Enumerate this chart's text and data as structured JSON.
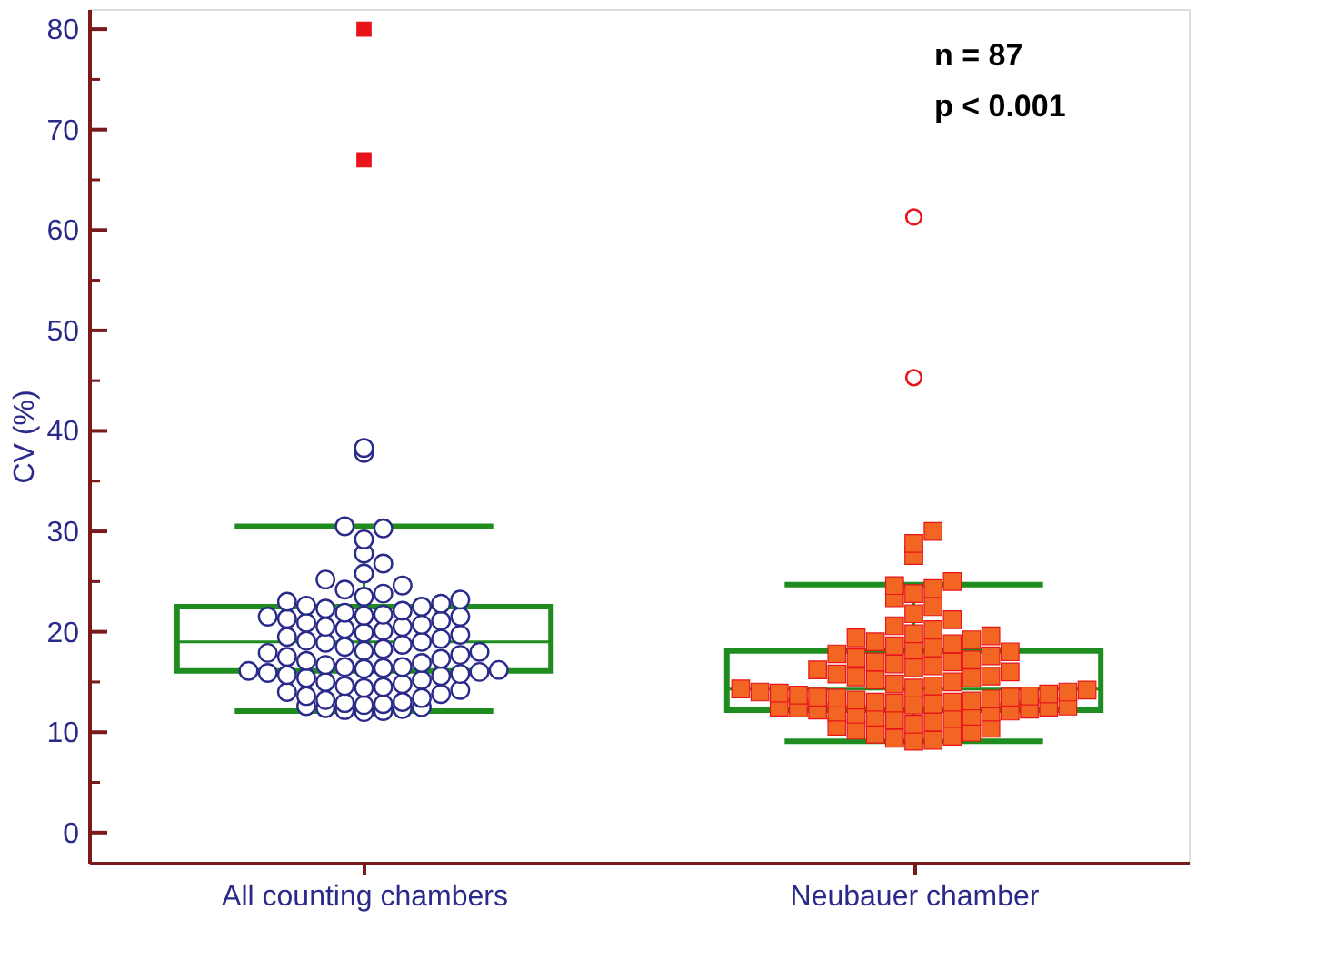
{
  "chart_data": {
    "type": "box",
    "ylabel": "CV (%)",
    "categories": [
      "All counting chambers",
      "Neubauer chamber"
    ],
    "color": "#1e8c1e",
    "boxes": [
      {
        "low": 12.1,
        "q1": 16.1,
        "median": 19.0,
        "q3": 22.5,
        "high": 30.5,
        "outliers": [
          80,
          67
        ]
      },
      {
        "low": 9.1,
        "q1": 12.2,
        "median": 14.3,
        "q3": 18.1,
        "high": 24.7,
        "outliers": [
          61.3,
          45.3
        ]
      }
    ],
    "series": [
      {
        "type": "scatter",
        "marker": "circle",
        "color": "#ffffff",
        "x": [
          "All counting chambers",
          "All counting chambers",
          "All counting chambers",
          "All counting chambers",
          "All counting chambers",
          "All counting chambers",
          "All counting chambers",
          "All counting chambers",
          "All counting chambers",
          "All counting chambers",
          "All counting chambers",
          "All counting chambers",
          "All counting chambers",
          "All counting chambers",
          "All counting chambers",
          "All counting chambers",
          "All counting chambers",
          "All counting chambers",
          "All counting chambers",
          "All counting chambers",
          "All counting chambers",
          "All counting chambers",
          "All counting chambers",
          "All counting chambers",
          "All counting chambers",
          "All counting chambers",
          "All counting chambers",
          "All counting chambers",
          "All counting chambers",
          "All counting chambers",
          "All counting chambers",
          "All counting chambers",
          "All counting chambers",
          "All counting chambers",
          "All counting chambers",
          "All counting chambers",
          "All counting chambers",
          "All counting chambers",
          "All counting chambers",
          "All counting chambers",
          "All counting chambers",
          "All counting chambers",
          "All counting chambers",
          "All counting chambers",
          "All counting chambers",
          "All counting chambers",
          "All counting chambers",
          "All counting chambers",
          "All counting chambers",
          "All counting chambers",
          "All counting chambers",
          "All counting chambers",
          "All counting chambers",
          "All counting chambers",
          "All counting chambers",
          "All counting chambers",
          "All counting chambers",
          "All counting chambers",
          "All counting chambers",
          "All counting chambers",
          "All counting chambers",
          "All counting chambers",
          "All counting chambers",
          "All counting chambers",
          "All counting chambers",
          "All counting chambers",
          "All counting chambers",
          "All counting chambers",
          "All counting chambers",
          "All counting chambers",
          "All counting chambers",
          "All counting chambers",
          "All counting chambers",
          "All counting chambers",
          "All counting chambers",
          "All counting chambers",
          "All counting chambers",
          "All counting chambers",
          "All counting chambers",
          "All counting chambers",
          "All counting chambers",
          "All counting chambers",
          "All counting chambers",
          "All counting chambers",
          "All counting chambers",
          "All counting chambers",
          "All counting chambers"
        ],
        "values": [
          38.3,
          37.8,
          30.5,
          30.3,
          29.2,
          27.8,
          26.8,
          25.8,
          25.2,
          24.6,
          24.2,
          23.8,
          23.5,
          23.2,
          23.0,
          22.8,
          22.6,
          22.5,
          22.3,
          22.1,
          21.9,
          21.7,
          21.6,
          21.5,
          21.3,
          21.1,
          20.9,
          20.7,
          20.5,
          20.3,
          20.1,
          19.9,
          19.7,
          19.5,
          19.3,
          19.1,
          19.0,
          18.9,
          18.7,
          18.5,
          18.3,
          18.1,
          17.9,
          17.7,
          17.5,
          17.3,
          17.1,
          16.9,
          16.7,
          16.5,
          16.4,
          16.3,
          16.2,
          16.1,
          16.0,
          15.9,
          15.8,
          15.7,
          15.6,
          15.4,
          15.2,
          15.0,
          14.8,
          14.6,
          14.4,
          14.2,
          14.0,
          13.8,
          13.6,
          13.4,
          13.2,
          13.0,
          12.9,
          12.8,
          12.7,
          12.6,
          12.5,
          12.4,
          12.3,
          12.2,
          12.1,
          12.0,
          21.5,
          18.0,
          14.5,
          16.5,
          20.5
        ]
      },
      {
        "type": "scatter",
        "marker": "square",
        "color": "#f26522",
        "x": [
          "Neubauer chamber",
          "Neubauer chamber",
          "Neubauer chamber",
          "Neubauer chamber",
          "Neubauer chamber",
          "Neubauer chamber",
          "Neubauer chamber",
          "Neubauer chamber",
          "Neubauer chamber",
          "Neubauer chamber",
          "Neubauer chamber",
          "Neubauer chamber",
          "Neubauer chamber",
          "Neubauer chamber",
          "Neubauer chamber",
          "Neubauer chamber",
          "Neubauer chamber",
          "Neubauer chamber",
          "Neubauer chamber",
          "Neubauer chamber",
          "Neubauer chamber",
          "Neubauer chamber",
          "Neubauer chamber",
          "Neubauer chamber",
          "Neubauer chamber",
          "Neubauer chamber",
          "Neubauer chamber",
          "Neubauer chamber",
          "Neubauer chamber",
          "Neubauer chamber",
          "Neubauer chamber",
          "Neubauer chamber",
          "Neubauer chamber",
          "Neubauer chamber",
          "Neubauer chamber",
          "Neubauer chamber",
          "Neubauer chamber",
          "Neubauer chamber",
          "Neubauer chamber",
          "Neubauer chamber",
          "Neubauer chamber",
          "Neubauer chamber",
          "Neubauer chamber",
          "Neubauer chamber",
          "Neubauer chamber",
          "Neubauer chamber",
          "Neubauer chamber",
          "Neubauer chamber",
          "Neubauer chamber",
          "Neubauer chamber",
          "Neubauer chamber",
          "Neubauer chamber",
          "Neubauer chamber",
          "Neubauer chamber",
          "Neubauer chamber",
          "Neubauer chamber",
          "Neubauer chamber",
          "Neubauer chamber",
          "Neubauer chamber",
          "Neubauer chamber",
          "Neubauer chamber",
          "Neubauer chamber",
          "Neubauer chamber",
          "Neubauer chamber",
          "Neubauer chamber",
          "Neubauer chamber",
          "Neubauer chamber",
          "Neubauer chamber",
          "Neubauer chamber",
          "Neubauer chamber",
          "Neubauer chamber",
          "Neubauer chamber",
          "Neubauer chamber",
          "Neubauer chamber",
          "Neubauer chamber",
          "Neubauer chamber",
          "Neubauer chamber",
          "Neubauer chamber",
          "Neubauer chamber",
          "Neubauer chamber",
          "Neubauer chamber",
          "Neubauer chamber",
          "Neubauer chamber",
          "Neubauer chamber",
          "Neubauer chamber",
          "Neubauer chamber",
          "Neubauer chamber"
        ],
        "values": [
          30.0,
          28.8,
          27.6,
          25.0,
          24.6,
          24.3,
          23.8,
          23.4,
          22.5,
          21.8,
          21.2,
          20.6,
          20.2,
          19.8,
          19.6,
          19.4,
          19.2,
          19.0,
          18.8,
          18.6,
          18.4,
          18.2,
          18.0,
          17.8,
          17.6,
          17.4,
          17.2,
          17.0,
          16.8,
          16.6,
          16.4,
          16.2,
          16.0,
          15.8,
          15.6,
          15.4,
          15.2,
          15.0,
          14.8,
          14.6,
          14.4,
          14.3,
          14.2,
          14.0,
          13.9,
          13.8,
          13.7,
          13.6,
          13.5,
          13.4,
          13.3,
          13.2,
          13.1,
          13.0,
          12.9,
          12.8,
          12.7,
          12.6,
          12.5,
          12.4,
          12.3,
          12.2,
          12.1,
          12.0,
          11.8,
          11.6,
          11.4,
          11.2,
          11.0,
          10.8,
          10.6,
          10.4,
          10.2,
          10.0,
          9.8,
          9.6,
          9.4,
          9.2,
          9.1,
          13.0,
          14.0,
          12.5,
          11.5,
          15.5,
          17.0,
          13.5,
          12.0
        ]
      }
    ],
    "ylim": [
      -3,
      82
    ],
    "yticks": [
      0,
      {
        "value": 5,
        "label": null
      },
      10,
      {
        "value": 15,
        "label": null
      },
      20,
      {
        "value": 25,
        "label": null
      },
      30,
      {
        "value": 35,
        "label": null
      },
      40,
      {
        "value": 45,
        "label": null
      },
      50,
      {
        "value": 55,
        "label": null
      },
      60,
      {
        "value": 65,
        "label": null
      },
      70,
      {
        "value": 75,
        "label": null
      },
      80
    ],
    "annotations": [
      "n = 87",
      "p < 0.001"
    ],
    "tick_labels": true
  }
}
